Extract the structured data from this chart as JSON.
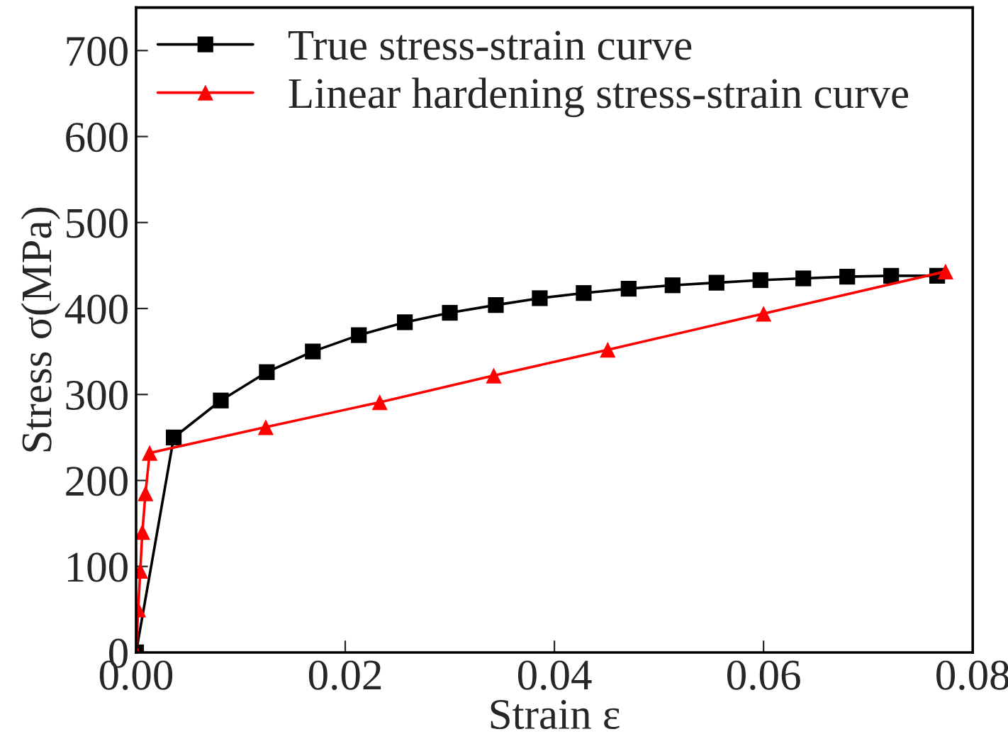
{
  "chart_data": {
    "type": "line",
    "xlabel": "Strain ε",
    "ylabel": "Stress σ(MPa)",
    "xlim": [
      0,
      0.08
    ],
    "ylim": [
      0,
      750
    ],
    "xticks": [
      {
        "value": 0,
        "label": "0.00"
      },
      {
        "value": 0.02,
        "label": "0.02"
      },
      {
        "value": 0.04,
        "label": "0.04"
      },
      {
        "value": 0.06,
        "label": "0.06"
      },
      {
        "value": 0.08,
        "label": "0.08"
      }
    ],
    "yticks": [
      0,
      100,
      200,
      300,
      400,
      500,
      600,
      700
    ],
    "grid": false,
    "legend": "top left",
    "line_style": "solid",
    "series": [
      {
        "name": "True stress-strain curve",
        "color": "#000000",
        "marker": "square",
        "x": [
          0,
          0.0036,
          0.0081,
          0.0125,
          0.0169,
          0.0213,
          0.0257,
          0.03,
          0.0344,
          0.0386,
          0.0428,
          0.0471,
          0.0513,
          0.0555,
          0.0597,
          0.0638,
          0.068,
          0.0722,
          0.0766
        ],
        "values": [
          0,
          250,
          293,
          326,
          350,
          369,
          384,
          395,
          404,
          412,
          418,
          423,
          427,
          430,
          433,
          435,
          437,
          438,
          438
        ]
      },
      {
        "name": "Linear hardening stress-strain curve",
        "color": "#ff0000",
        "marker": "triangle",
        "x": [
          0,
          0.0002,
          0.0004,
          0.0006,
          0.0009,
          0.0013,
          0.0124,
          0.0233,
          0.0342,
          0.0451,
          0.06,
          0.0774
        ],
        "values": [
          0,
          50,
          95,
          140,
          185,
          232,
          262,
          291,
          322,
          352,
          394,
          443
        ]
      }
    ]
  }
}
